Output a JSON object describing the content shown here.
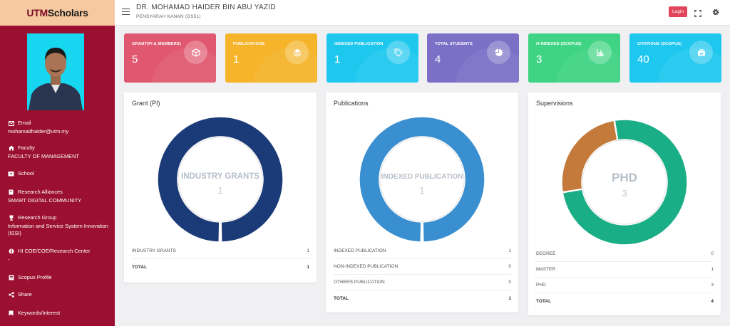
{
  "logo": {
    "text_a": "UTM",
    "text_b": "Scholars"
  },
  "header": {
    "name": "DR. MOHAMAD HAIDER BIN ABU YAZID",
    "position": "PENSYARAH KANAN (DS51)",
    "login_label": "Login"
  },
  "sidebar": {
    "items": [
      {
        "label": "Email",
        "value": "mohamadhaider@utm.my",
        "icon": "mail-icon"
      },
      {
        "label": "Faculty",
        "value": "FACULTY OF MANAGEMENT",
        "icon": "home-icon"
      },
      {
        "label": "School",
        "value": "",
        "icon": "school-icon"
      },
      {
        "label": "Research Alliances",
        "value": "SMART DIGITAL COMMUNITY",
        "icon": "book-icon"
      },
      {
        "label": "Research Group",
        "value": "Information and Service System Innovation (ISSI)",
        "icon": "trophy-icon"
      },
      {
        "label": "HI COE/COE/Research Center",
        "value": "-",
        "icon": "lab-icon"
      },
      {
        "label": "Scopus Profile",
        "value": "",
        "icon": "profile-icon"
      },
      {
        "label": "Share",
        "value": "",
        "icon": "share-icon"
      },
      {
        "label": "Keywords/Interest",
        "value": "",
        "icon": "bookmark-icon"
      }
    ]
  },
  "stats": [
    {
      "label": "GRANT(PI & MEMBERS)",
      "value": "5",
      "color": "#e0586f",
      "icon": "box-icon"
    },
    {
      "label": "PUBLICATIONS",
      "value": "1",
      "color": "#f5b42a",
      "icon": "layers-icon"
    },
    {
      "label": "INDEXED PUBLICATION",
      "value": "1",
      "color": "#1ec7ee",
      "icon": "tag-icon"
    },
    {
      "label": "TOTAL STUDENTS",
      "value": "4",
      "color": "#7b6fc6",
      "icon": "pie-icon"
    },
    {
      "label": "H-INDEXED (SCOPUS)",
      "value": "3",
      "color": "#3fd483",
      "icon": "bar-chart-icon"
    },
    {
      "label": "CITATIONS (SCOPUS)",
      "value": "40",
      "color": "#1ec7ee",
      "icon": "briefcase-icon"
    }
  ],
  "chart_data": [
    {
      "type": "pie",
      "title": "Grant (PI)",
      "center_label": "INDUSTRY GRANTS",
      "center_value": "1",
      "categories": [
        "INDUSTRY GRANTS"
      ],
      "values": [
        1
      ],
      "colors": [
        "#1b3a78"
      ],
      "total_label": "TOTAL",
      "total": "1"
    },
    {
      "type": "pie",
      "title": "Publications",
      "center_label": "INDEXED PUBLICATION",
      "center_value": "1",
      "categories": [
        "INDEXED PUBLICATION",
        "NON-INDEXED PUBLICATION",
        "OTHERS PUBLICATION"
      ],
      "values": [
        1,
        0,
        0
      ],
      "colors": [
        "#3a8fd0",
        "#c0392b",
        "#2ecc71"
      ],
      "total_label": "TOTAL",
      "total": "1"
    },
    {
      "type": "pie",
      "title": "Supervisions",
      "center_label": "PHD",
      "center_value": "3",
      "categories": [
        "DEGREE",
        "MASTER",
        "PHD"
      ],
      "values": [
        0,
        1,
        3
      ],
      "colors": [
        "#9b59b6",
        "#c47a3a",
        "#1aae86"
      ],
      "total_label": "TOTAL",
      "total": "4"
    }
  ]
}
